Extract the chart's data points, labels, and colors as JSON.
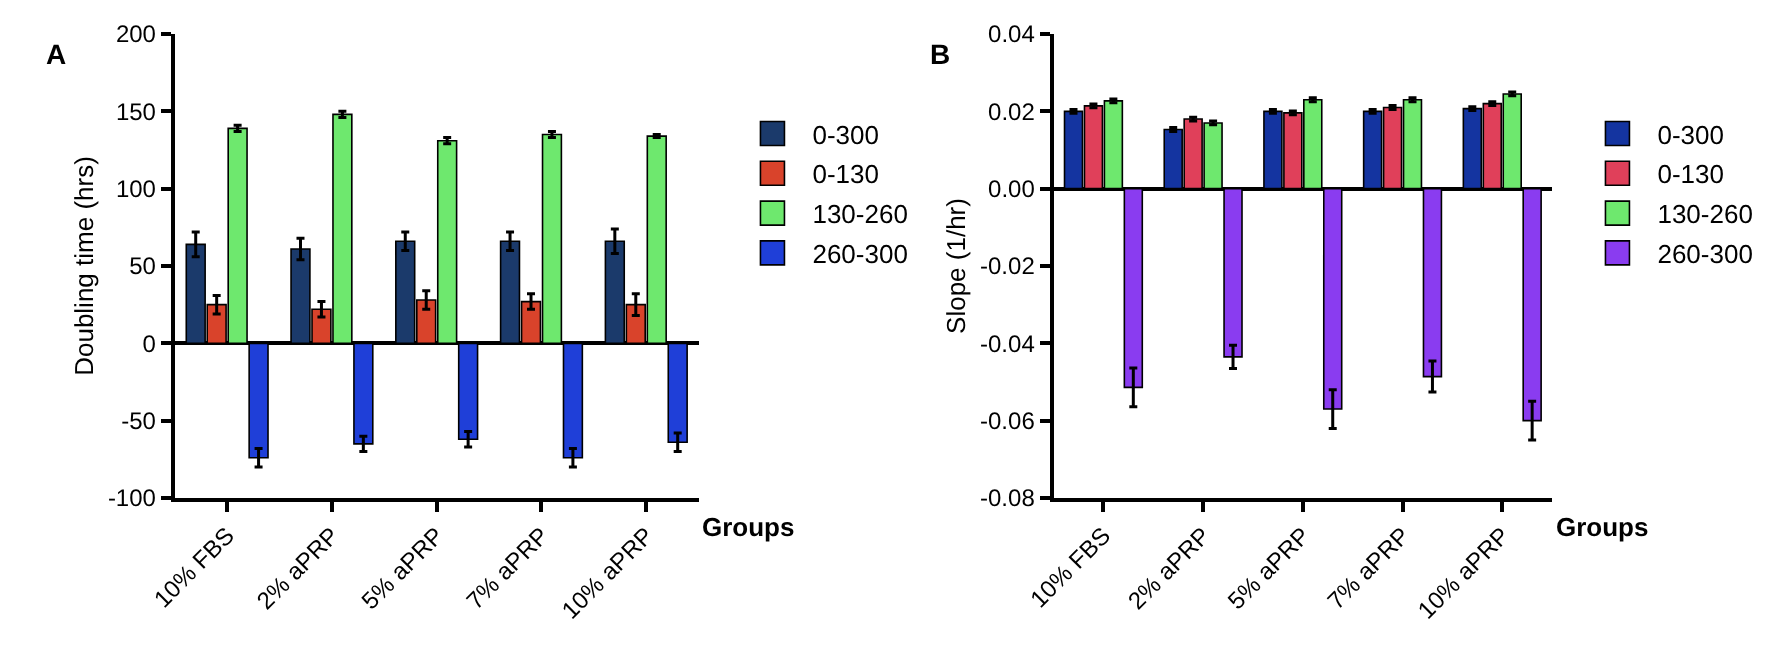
{
  "chart_data": [
    {
      "type": "bar",
      "title": "A",
      "xlabel": "Groups",
      "ylabel": "Doubling time (hrs)",
      "categories": [
        "10% FBS",
        "2% aPRP",
        "5% aPRP",
        "7% aPRP",
        "10% aPRP"
      ],
      "series": [
        {
          "name": "0-300",
          "color": "#1b3a6b",
          "values": [
            64,
            61,
            66,
            66,
            66
          ],
          "errors": [
            8,
            7,
            6,
            6,
            8
          ]
        },
        {
          "name": "0-130",
          "color": "#d9432b",
          "values": [
            25,
            22,
            28,
            27,
            25
          ],
          "errors": [
            6,
            5,
            6,
            5,
            7
          ]
        },
        {
          "name": "130-260",
          "color": "#6ee86e",
          "values": [
            139,
            148,
            131,
            135,
            134
          ],
          "errors": [
            2,
            2,
            2,
            2,
            1
          ]
        },
        {
          "name": "260-300",
          "color": "#1f3fd8",
          "values": [
            -74,
            -65,
            -62,
            -74,
            -64
          ],
          "errors": [
            6,
            5,
            5,
            6,
            6
          ]
        }
      ],
      "ylim": [
        -100,
        200
      ],
      "yticks": [
        -100,
        -50,
        0,
        50,
        100,
        150,
        200
      ],
      "legend": "right"
    },
    {
      "type": "bar",
      "title": "B",
      "xlabel": "Groups",
      "ylabel": "Slope (1/hr)",
      "categories": [
        "10% FBS",
        "2% aPRP",
        "5% aPRP",
        "7% aPRP",
        "10% aPRP"
      ],
      "series": [
        {
          "name": "0-300",
          "color": "#1434a0",
          "values": [
            0.02,
            0.0153,
            0.02,
            0.02,
            0.0207
          ],
          "errors": [
            0.0005,
            0.0005,
            0.0005,
            0.0005,
            0.0005
          ]
        },
        {
          "name": "0-130",
          "color": "#e0405a",
          "values": [
            0.0214,
            0.018,
            0.0196,
            0.021,
            0.022
          ],
          "errors": [
            0.0005,
            0.0005,
            0.0005,
            0.0005,
            0.0005
          ]
        },
        {
          "name": "130-260",
          "color": "#6ee86e",
          "values": [
            0.0227,
            0.017,
            0.023,
            0.023,
            0.0245
          ],
          "errors": [
            0.0005,
            0.0005,
            0.0005,
            0.0005,
            0.0005
          ]
        },
        {
          "name": "260-300",
          "color": "#8a3cf0",
          "values": [
            -0.0514,
            -0.0435,
            -0.057,
            -0.0486,
            -0.06
          ],
          "errors": [
            0.005,
            0.003,
            0.005,
            0.004,
            0.005
          ]
        }
      ],
      "ylim": [
        -0.08,
        0.04
      ],
      "yticks": [
        {
          "value": -0.08,
          "label": "-0.08"
        },
        {
          "value": -0.06,
          "label": "-0.06"
        },
        {
          "value": -0.04,
          "label": "-0.04"
        },
        {
          "value": -0.02,
          "label": "-0.02"
        },
        {
          "value": 0,
          "label": "0.00"
        },
        {
          "value": 0.02,
          "label": "0.02"
        },
        {
          "value": 0.04,
          "label": "0.04"
        }
      ],
      "legend": "right"
    }
  ]
}
